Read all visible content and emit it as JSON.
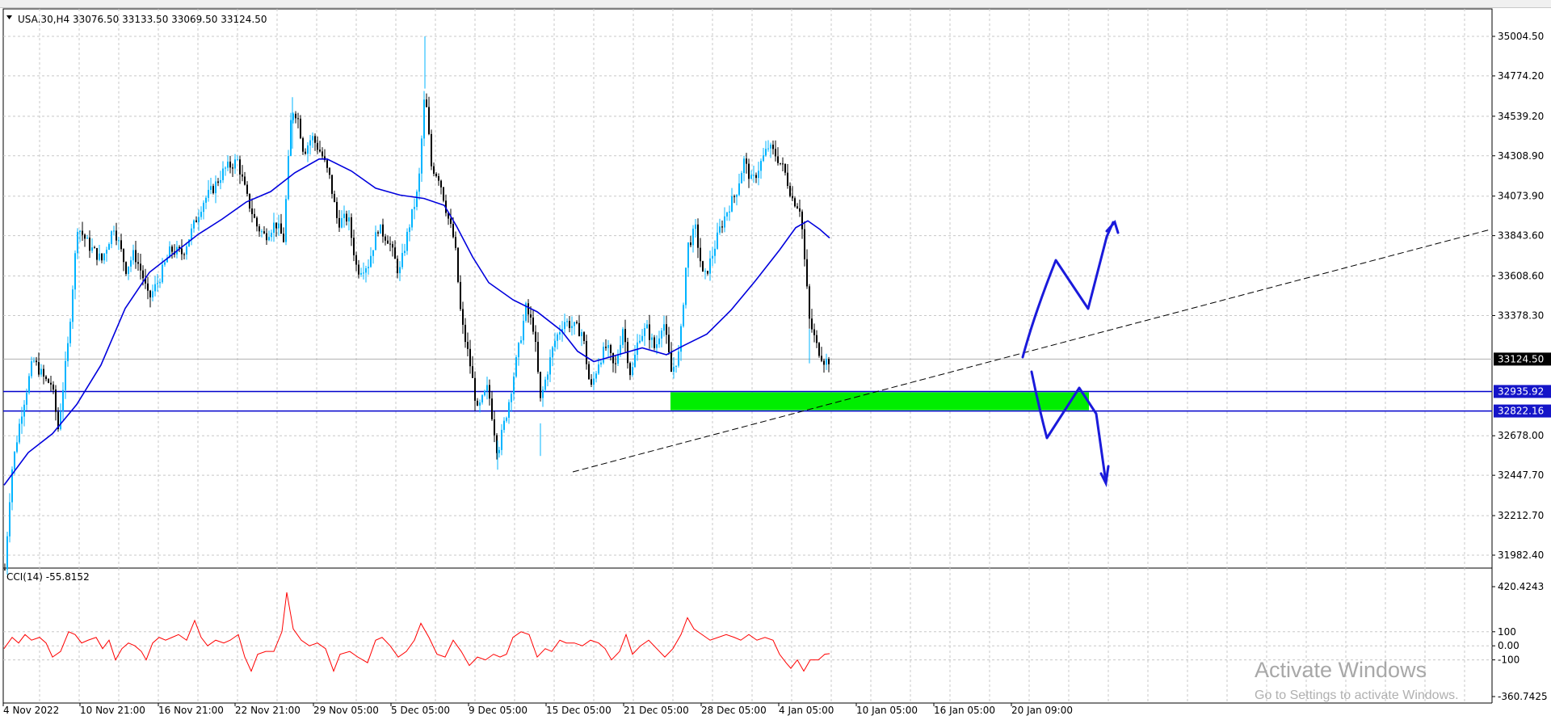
{
  "symbol_info": "USA.30,H4  33076.50 33133.50 33069.50 33124.50",
  "indicator_info": "CCI(14) -55.8152",
  "chart_data": [
    {
      "type": "candlestick",
      "symbol": "USA.30",
      "timeframe": "H4",
      "ohlc_last": {
        "open": 33076.5,
        "high": 33133.5,
        "low": 33069.5,
        "close": 33124.5
      },
      "y_ticks": [
        "35004.50",
        "34774.20",
        "34539.20",
        "34308.90",
        "34073.90",
        "33843.60",
        "33608.60",
        "33378.30",
        "33124.50",
        "32935.92",
        "32822.16",
        "32678.00",
        "32447.70",
        "32212.70",
        "31982.40"
      ],
      "x_ticks": [
        "4 Nov 2022",
        "10 Nov 21:00",
        "16 Nov 21:00",
        "22 Nov 21:00",
        "29 Nov 05:00",
        "5 Dec 05:00",
        "9 Dec 05:00",
        "15 Dec 05:00",
        "21 Dec 05:00",
        "28 Dec 05:00",
        "4 Jan 05:00",
        "10 Jan 05:00",
        "16 Jan 05:00",
        "20 Jan 09:00"
      ],
      "ylim": [
        31900,
        35050
      ],
      "up_color": "#00b4ff",
      "down_color": "#000000",
      "ma_color": "#0000dd",
      "price_path": [
        [
          0,
          31900
        ],
        [
          8,
          32460
        ],
        [
          20,
          32800
        ],
        [
          35,
          33120
        ],
        [
          50,
          33000
        ],
        [
          58,
          32980
        ],
        [
          66,
          32720
        ],
        [
          78,
          33200
        ],
        [
          90,
          33900
        ],
        [
          105,
          33780
        ],
        [
          120,
          33700
        ],
        [
          135,
          33900
        ],
        [
          150,
          33650
        ],
        [
          160,
          33740
        ],
        [
          170,
          33620
        ],
        [
          178,
          33470
        ],
        [
          190,
          33580
        ],
        [
          205,
          33760
        ],
        [
          220,
          33740
        ],
        [
          232,
          33880
        ],
        [
          245,
          34040
        ],
        [
          258,
          34120
        ],
        [
          272,
          34230
        ],
        [
          288,
          34280
        ],
        [
          300,
          34060
        ],
        [
          312,
          33900
        ],
        [
          322,
          33840
        ],
        [
          335,
          33920
        ],
        [
          345,
          33820
        ],
        [
          355,
          34580
        ],
        [
          362,
          34550
        ],
        [
          370,
          34330
        ],
        [
          380,
          34420
        ],
        [
          392,
          34320
        ],
        [
          402,
          34180
        ],
        [
          412,
          33920
        ],
        [
          425,
          33950
        ],
        [
          436,
          33640
        ],
        [
          450,
          33680
        ],
        [
          462,
          33890
        ],
        [
          475,
          33820
        ],
        [
          488,
          33620
        ],
        [
          500,
          33890
        ],
        [
          512,
          34120
        ],
        [
          520,
          34690
        ],
        [
          528,
          34250
        ],
        [
          538,
          34180
        ],
        [
          548,
          33960
        ],
        [
          557,
          33800
        ],
        [
          565,
          33350
        ],
        [
          575,
          33120
        ],
        [
          585,
          32820
        ],
        [
          598,
          32960
        ],
        [
          610,
          32580
        ],
        [
          622,
          32830
        ],
        [
          635,
          33160
        ],
        [
          645,
          33420
        ],
        [
          655,
          33300
        ],
        [
          663,
          32880
        ],
        [
          672,
          33060
        ],
        [
          680,
          33220
        ],
        [
          692,
          33350
        ],
        [
          705,
          33310
        ],
        [
          715,
          33280
        ],
        [
          725,
          32940
        ],
        [
          735,
          33110
        ],
        [
          745,
          33200
        ],
        [
          755,
          33060
        ],
        [
          765,
          33310
        ],
        [
          775,
          33020
        ],
        [
          785,
          33260
        ],
        [
          795,
          33300
        ],
        [
          805,
          33180
        ],
        [
          815,
          33360
        ],
        [
          825,
          33050
        ],
        [
          835,
          33160
        ],
        [
          845,
          33780
        ],
        [
          855,
          33880
        ],
        [
          865,
          33580
        ],
        [
          875,
          33720
        ],
        [
          885,
          33880
        ],
        [
          895,
          34000
        ],
        [
          905,
          34090
        ],
        [
          915,
          34280
        ],
        [
          925,
          34150
        ],
        [
          935,
          34260
        ],
        [
          945,
          34360
        ],
        [
          955,
          34310
        ],
        [
          965,
          34220
        ],
        [
          975,
          34060
        ],
        [
          985,
          34000
        ],
        [
          990,
          33700
        ],
        [
          996,
          33350
        ],
        [
          1005,
          33200
        ],
        [
          1015,
          33110
        ],
        [
          1022,
          33124.5
        ]
      ],
      "ma_path": [
        [
          0,
          32390
        ],
        [
          30,
          32580
        ],
        [
          60,
          32690
        ],
        [
          90,
          32860
        ],
        [
          120,
          33090
        ],
        [
          150,
          33420
        ],
        [
          180,
          33630
        ],
        [
          210,
          33740
        ],
        [
          240,
          33850
        ],
        [
          270,
          33940
        ],
        [
          300,
          34040
        ],
        [
          330,
          34100
        ],
        [
          360,
          34210
        ],
        [
          390,
          34290
        ],
        [
          400,
          34290
        ],
        [
          430,
          34220
        ],
        [
          460,
          34120
        ],
        [
          490,
          34080
        ],
        [
          520,
          34060
        ],
        [
          545,
          34020
        ],
        [
          560,
          33900
        ],
        [
          580,
          33720
        ],
        [
          600,
          33570
        ],
        [
          630,
          33470
        ],
        [
          660,
          33400
        ],
        [
          690,
          33290
        ],
        [
          710,
          33170
        ],
        [
          730,
          33110
        ],
        [
          760,
          33150
        ],
        [
          790,
          33190
        ],
        [
          820,
          33150
        ],
        [
          840,
          33200
        ],
        [
          870,
          33270
        ],
        [
          900,
          33410
        ],
        [
          930,
          33580
        ],
        [
          960,
          33760
        ],
        [
          980,
          33890
        ],
        [
          995,
          33930
        ],
        [
          1010,
          33880
        ],
        [
          1022,
          33830
        ]
      ]
    },
    {
      "type": "line",
      "name": "CCI(14)",
      "last_value": -55.8152,
      "ylim": [
        -360.7425,
        420.4243
      ],
      "y_ticks": [
        "420.4243",
        "100",
        "0.00",
        "-100",
        "-360.7425"
      ],
      "levels": [
        100,
        0,
        -100
      ],
      "color": "#ff0000",
      "values": [
        [
          0,
          -20
        ],
        [
          10,
          60
        ],
        [
          18,
          20
        ],
        [
          26,
          80
        ],
        [
          34,
          40
        ],
        [
          44,
          60
        ],
        [
          52,
          20
        ],
        [
          60,
          -80
        ],
        [
          70,
          -40
        ],
        [
          80,
          100
        ],
        [
          88,
          80
        ],
        [
          96,
          20
        ],
        [
          104,
          40
        ],
        [
          114,
          60
        ],
        [
          122,
          -20
        ],
        [
          130,
          40
        ],
        [
          138,
          -100
        ],
        [
          146,
          -20
        ],
        [
          154,
          20
        ],
        [
          162,
          0
        ],
        [
          170,
          -40
        ],
        [
          176,
          -100
        ],
        [
          184,
          20
        ],
        [
          192,
          60
        ],
        [
          200,
          40
        ],
        [
          208,
          60
        ],
        [
          216,
          80
        ],
        [
          226,
          40
        ],
        [
          236,
          180
        ],
        [
          244,
          60
        ],
        [
          252,
          0
        ],
        [
          262,
          40
        ],
        [
          272,
          20
        ],
        [
          280,
          40
        ],
        [
          290,
          80
        ],
        [
          298,
          -80
        ],
        [
          306,
          -180
        ],
        [
          314,
          -60
        ],
        [
          324,
          -40
        ],
        [
          334,
          -40
        ],
        [
          344,
          100
        ],
        [
          350,
          380
        ],
        [
          358,
          120
        ],
        [
          368,
          40
        ],
        [
          378,
          0
        ],
        [
          388,
          20
        ],
        [
          398,
          -20
        ],
        [
          408,
          -180
        ],
        [
          416,
          -60
        ],
        [
          428,
          -40
        ],
        [
          438,
          -80
        ],
        [
          450,
          -120
        ],
        [
          460,
          40
        ],
        [
          468,
          60
        ],
        [
          478,
          0
        ],
        [
          488,
          -80
        ],
        [
          498,
          -40
        ],
        [
          508,
          40
        ],
        [
          516,
          160
        ],
        [
          526,
          60
        ],
        [
          536,
          -60
        ],
        [
          546,
          -80
        ],
        [
          556,
          40
        ],
        [
          566,
          -40
        ],
        [
          576,
          -140
        ],
        [
          586,
          -80
        ],
        [
          596,
          -100
        ],
        [
          606,
          -60
        ],
        [
          614,
          -80
        ],
        [
          622,
          -60
        ],
        [
          630,
          60
        ],
        [
          640,
          100
        ],
        [
          650,
          80
        ],
        [
          660,
          -80
        ],
        [
          670,
          -20
        ],
        [
          678,
          -40
        ],
        [
          688,
          40
        ],
        [
          696,
          20
        ],
        [
          706,
          20
        ],
        [
          716,
          0
        ],
        [
          726,
          40
        ],
        [
          736,
          20
        ],
        [
          744,
          -20
        ],
        [
          752,
          -100
        ],
        [
          762,
          -40
        ],
        [
          770,
          80
        ],
        [
          778,
          -60
        ],
        [
          788,
          0
        ],
        [
          798,
          40
        ],
        [
          808,
          -20
        ],
        [
          818,
          -80
        ],
        [
          828,
          -20
        ],
        [
          838,
          80
        ],
        [
          846,
          200
        ],
        [
          854,
          120
        ],
        [
          864,
          80
        ],
        [
          874,
          40
        ],
        [
          884,
          60
        ],
        [
          894,
          80
        ],
        [
          904,
          60
        ],
        [
          912,
          40
        ],
        [
          922,
          80
        ],
        [
          932,
          40
        ],
        [
          942,
          60
        ],
        [
          952,
          40
        ],
        [
          960,
          -60
        ],
        [
          968,
          -120
        ],
        [
          974,
          -160
        ],
        [
          982,
          -100
        ],
        [
          990,
          -180
        ],
        [
          998,
          -100
        ],
        [
          1008,
          -100
        ],
        [
          1016,
          -60
        ],
        [
          1022,
          -55.8
        ]
      ]
    }
  ],
  "annotations": {
    "price_tags": [
      {
        "label": "33124.50",
        "price": 33124.5,
        "style": "dark"
      },
      {
        "label": "32935.92",
        "price": 32935.92,
        "style": "blue"
      },
      {
        "label": "32822.16",
        "price": 32822.16,
        "style": "blue"
      }
    ],
    "horizontal_lines": [
      32935.92,
      32822.16
    ],
    "zone_color": "#00ee00",
    "line_color": "#0000cc"
  },
  "watermark": {
    "title": "Activate Windows",
    "subtitle": "Go to Settings to activate Windows."
  }
}
